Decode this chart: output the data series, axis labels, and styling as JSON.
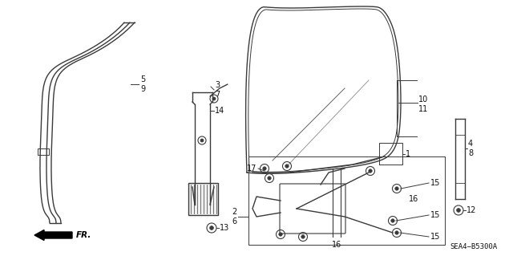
{
  "bg_color": "#ffffff",
  "line_color": "#3a3a3a",
  "label_color": "#111111",
  "diagram_code": "SEA4−B5300A",
  "fr_label": "FR.",
  "figsize": [
    6.4,
    3.19
  ],
  "dpi": 100
}
